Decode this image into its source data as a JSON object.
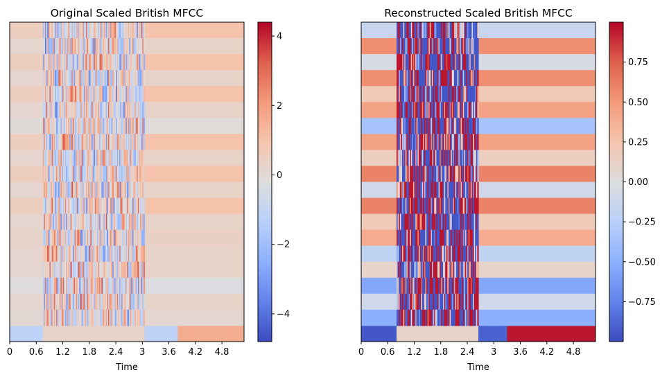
{
  "chart_data": [
    {
      "type": "heatmap",
      "title": "Original Scaled British MFCC",
      "xlabel": "Time",
      "ylabel": "",
      "xlim": [
        0,
        5.3
      ],
      "x_ticks": [
        "0",
        "0.6",
        "1.2",
        "1.8",
        "2.4",
        "3",
        "3.6",
        "4.2",
        "4.8"
      ],
      "y_ticks_visible": false,
      "n_coefficients": 20,
      "colormap": "coolwarm",
      "colorbar": {
        "range": [
          -4.8,
          4.4
        ],
        "ticks": [
          "−4",
          "−2",
          "0",
          "2",
          "4"
        ]
      },
      "active_region": [
        0.75,
        3.05
      ],
      "background_stripe_values": [
        1.0,
        0.3,
        1.0,
        0.3,
        1.0,
        0.3,
        -0.1,
        1.0,
        0.3,
        1.0,
        0.3,
        1.0,
        0.3,
        0.4,
        0.3,
        0.3,
        -0.3,
        0.3,
        0.1
      ],
      "bottom_row": {
        "segments": [
          [
            0,
            0.75,
            -1.2
          ],
          [
            0.75,
            3.05,
            0.3
          ],
          [
            3.05,
            3.8,
            -1.2
          ],
          [
            3.8,
            5.3,
            1.6
          ]
        ]
      }
    },
    {
      "type": "heatmap",
      "title": "Reconstructed Scaled British MFCC",
      "xlabel": "Time",
      "ylabel": "",
      "xlim": [
        0,
        5.3
      ],
      "x_ticks": [
        "0",
        "0.6",
        "1.2",
        "1.8",
        "2.4",
        "3",
        "3.6",
        "4.2",
        "4.8"
      ],
      "y_ticks_visible": false,
      "n_coefficients": 20,
      "colormap": "coolwarm",
      "colorbar": {
        "range": [
          -1.0,
          1.0
        ],
        "ticks": [
          "−0.75",
          "−0.50",
          "−0.25",
          "0.00",
          "0.25",
          "0.50",
          "0.75"
        ]
      },
      "active_region": [
        0.8,
        2.65
      ],
      "background_stripe_values": [
        -0.15,
        0.55,
        -0.05,
        0.55,
        0.2,
        0.45,
        -0.35,
        0.45,
        0.15,
        0.6,
        -0.1,
        0.6,
        0.2,
        0.4,
        -0.2,
        0.1,
        -0.55,
        -0.1,
        -0.5
      ],
      "bottom_row": {
        "segments": [
          [
            0,
            0.8,
            -0.95
          ],
          [
            0.8,
            2.65,
            0.1
          ],
          [
            2.65,
            3.3,
            -0.9
          ],
          [
            3.3,
            5.3,
            0.95
          ]
        ]
      }
    }
  ]
}
